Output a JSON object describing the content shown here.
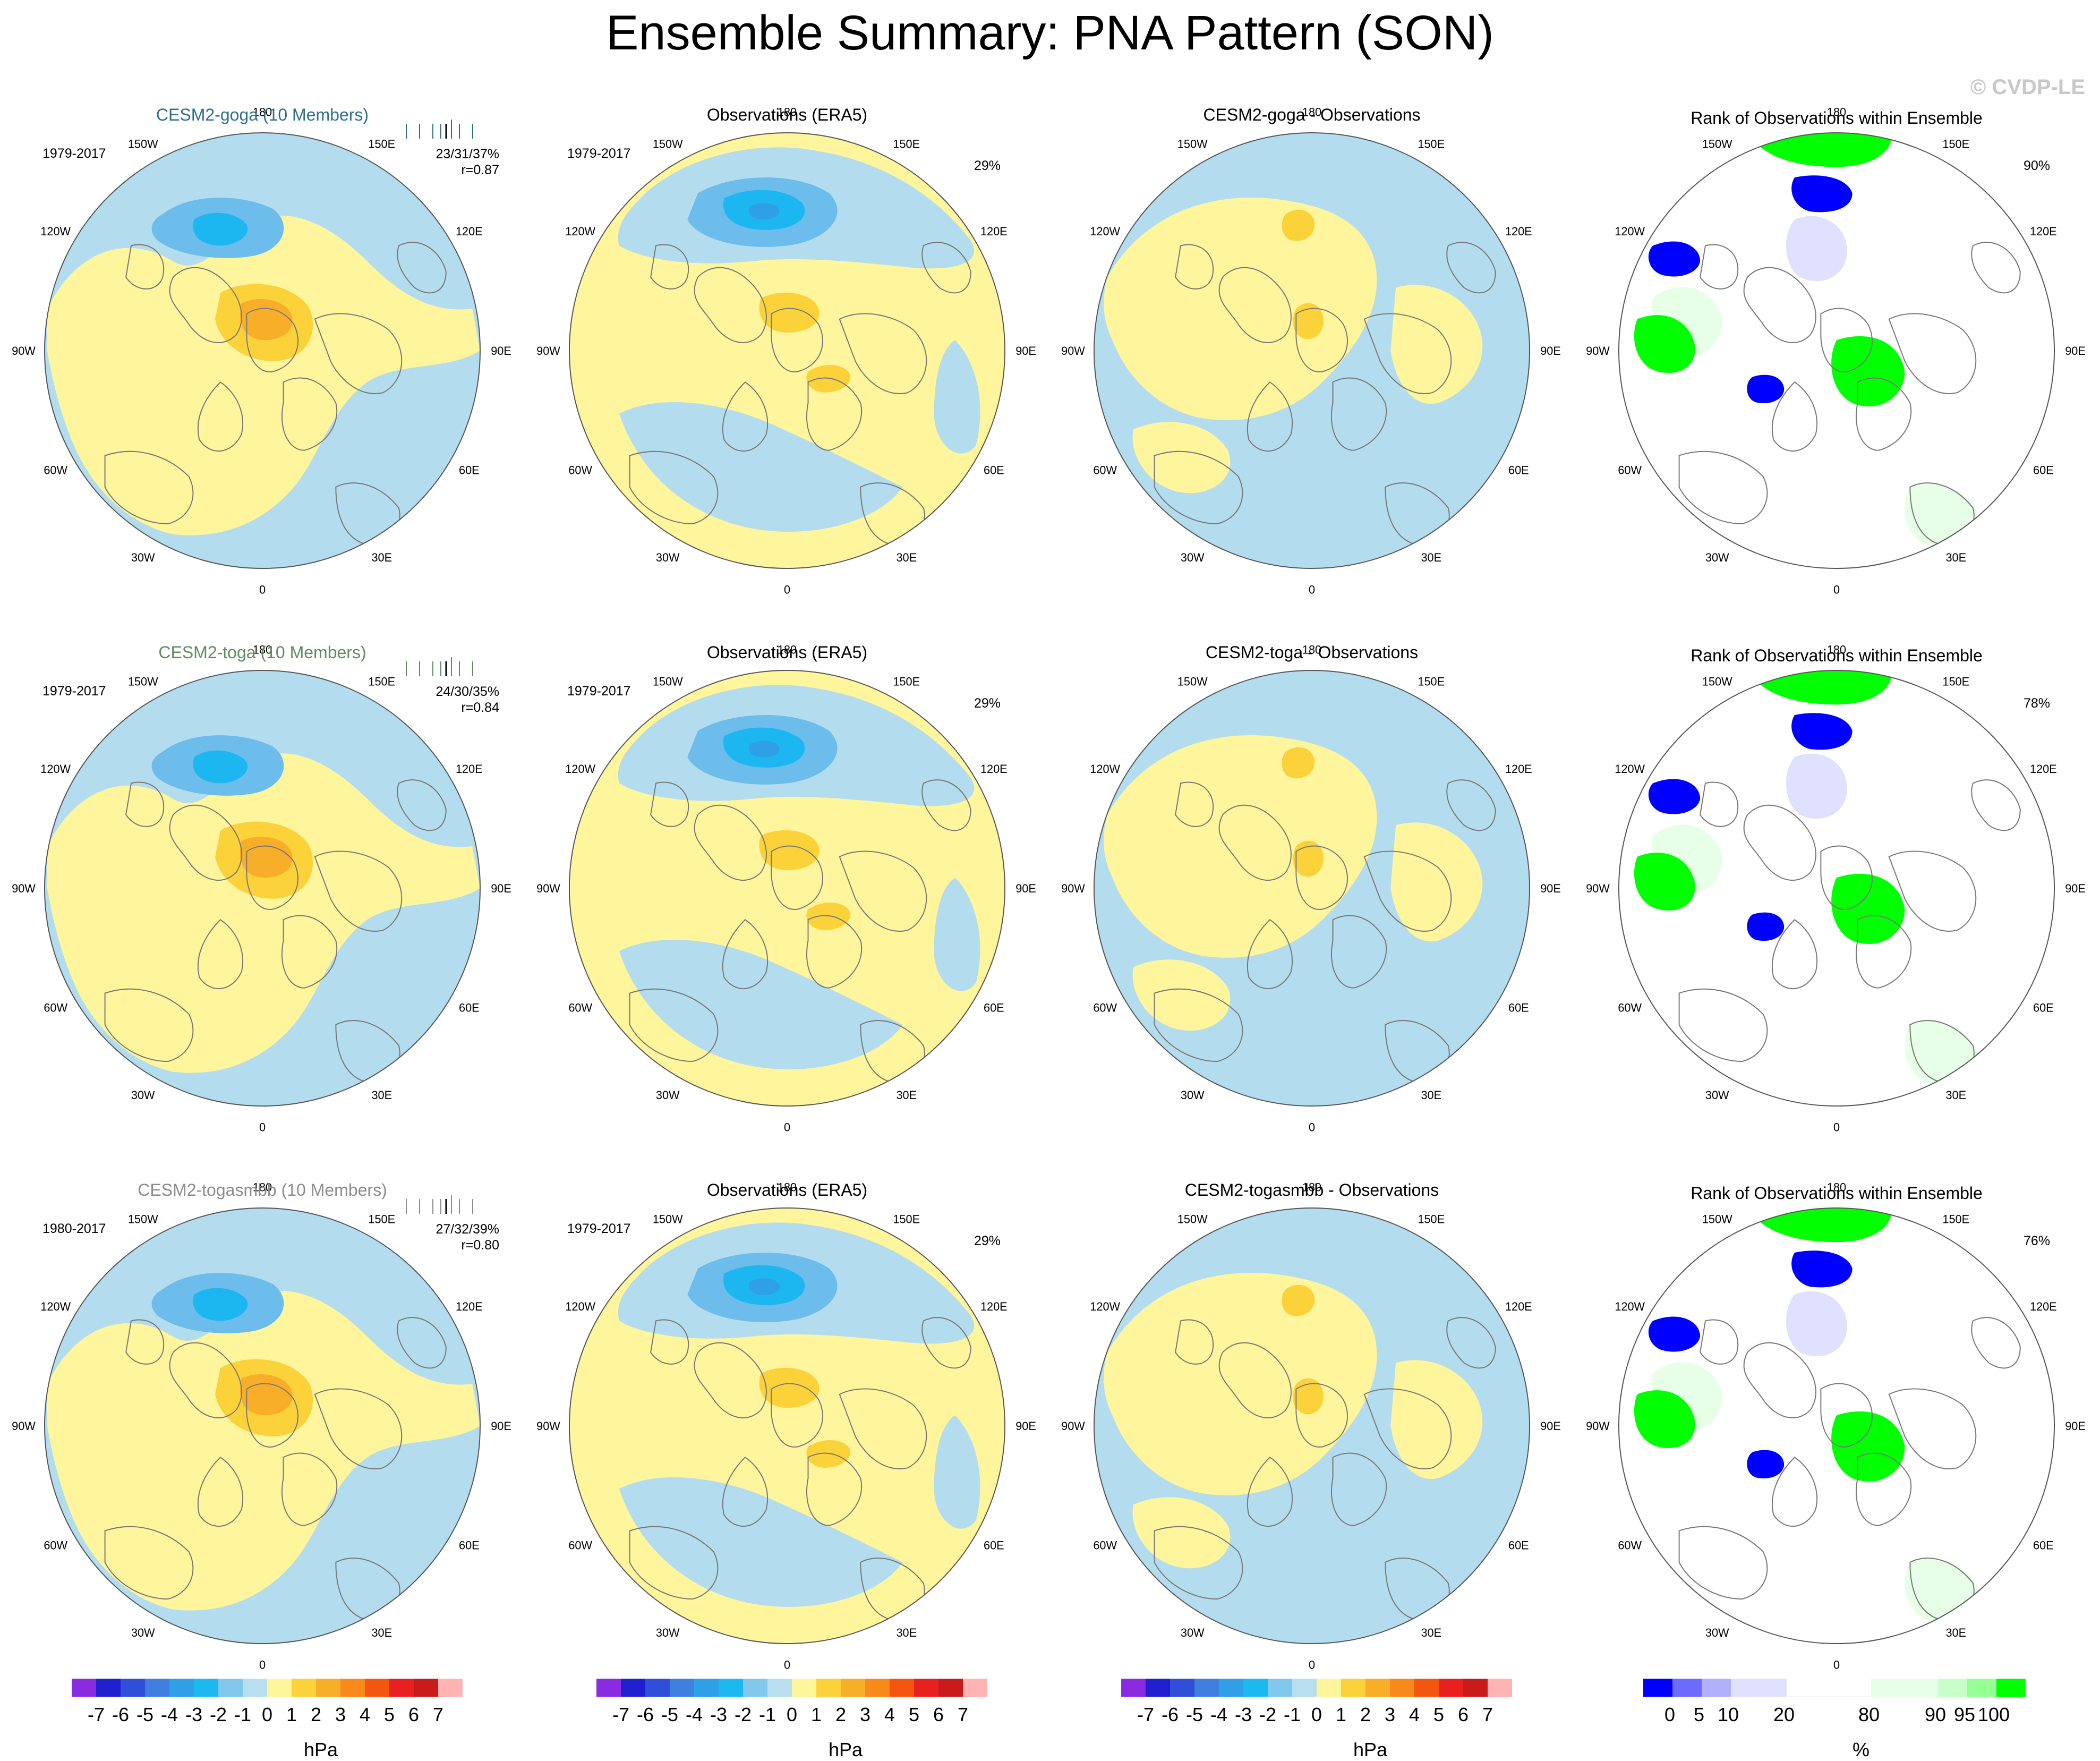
{
  "title": "Ensemble Summary: PNA Pattern (SON)",
  "watermark": "© CVDP-LE",
  "longitude_labels": [
    "180",
    "150E",
    "120E",
    "90E",
    "60E",
    "30E",
    "0",
    "30W",
    "60W",
    "90W",
    "120W",
    "150W"
  ],
  "rows": [
    {
      "model": {
        "title": "CESM2-goga (10 Members)",
        "color": "#2e6f8e",
        "years": "1979-2017",
        "stats_line1": "23/31/37%",
        "stats_line2": "r=0.87"
      },
      "obs": {
        "title": "Observations (ERA5)",
        "years": "1979-2017",
        "pct": "29%"
      },
      "diff": {
        "title": "CESM2-goga - Observations"
      },
      "rank": {
        "title": "Rank of Observations within Ensemble",
        "pct": "90%"
      }
    },
    {
      "model": {
        "title": "CESM2-toga (10 Members)",
        "color": "#5f8c5f",
        "years": "1979-2017",
        "stats_line1": "24/30/35%",
        "stats_line2": "r=0.84"
      },
      "obs": {
        "title": "Observations (ERA5)",
        "years": "1979-2017",
        "pct": "29%"
      },
      "diff": {
        "title": "CESM2-toga - Observations"
      },
      "rank": {
        "title": "Rank of Observations within Ensemble",
        "pct": "78%"
      }
    },
    {
      "model": {
        "title": "CESM2-togasmbb (10 Members)",
        "color": "#8c8c8c",
        "years": "1980-2017",
        "stats_line1": "27/32/39%",
        "stats_line2": "r=0.80"
      },
      "obs": {
        "title": "Observations (ERA5)",
        "years": "1979-2017",
        "pct": "29%"
      },
      "diff": {
        "title": "CESM2-togasmbb - Observations"
      },
      "rank": {
        "title": "Rank of Observations within Ensemble",
        "pct": "76%"
      }
    }
  ],
  "colorbar_hpa": {
    "unit": "hPa",
    "labels": [
      "-7",
      "-6",
      "-5",
      "-4",
      "-3",
      "-2",
      "-1",
      "0",
      "1",
      "2",
      "3",
      "4",
      "5",
      "6",
      "7"
    ],
    "colors": [
      "#8a2be2",
      "#1f1fd0",
      "#2f4fd8",
      "#3f7fe0",
      "#2f9fe8",
      "#1cb8f0",
      "#80c8ec",
      "#b8def0",
      "#fff59a",
      "#fcd23a",
      "#f9ae2a",
      "#f78a1a",
      "#f5560f",
      "#e82020",
      "#c81a1a",
      "#ffb3b3"
    ]
  },
  "colorbar_rank": {
    "unit": "%",
    "labels": [
      "0",
      "5",
      "10",
      "20",
      "80",
      "90",
      "95",
      "100"
    ],
    "colors": [
      "#0000ff",
      "#6b6bff",
      "#b0b0ff",
      "#e0e0ff",
      "#ffffff",
      "#e6ffe6",
      "#c8ffc8",
      "#96ff96",
      "#00ff00"
    ]
  },
  "palette": {
    "neg": "#b4dcef",
    "pos": "#fef59c",
    "blue1": "#6cbcec",
    "blue2": "#1cb6f0",
    "blue3": "#2f9fe8",
    "orange1": "#fcd23a",
    "orange2": "#f9ae2a",
    "orange3": "#f5560f",
    "rank_low": "#0000ff",
    "rank_mid": "#e0e0ff",
    "rank_high": "#00ff00",
    "rank_pale": "#e6ffe6"
  }
}
